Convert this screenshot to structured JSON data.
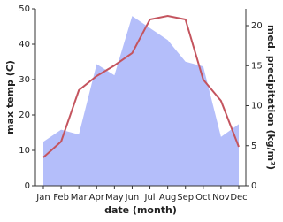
{
  "chart_data": {
    "type": "line",
    "categories": [
      "Jan",
      "Feb",
      "Mar",
      "Apr",
      "May",
      "Jun",
      "Jul",
      "Aug",
      "Sep",
      "Oct",
      "Nov",
      "Dec"
    ],
    "xlabel": "date (month)",
    "ylabel": "max temp (C)",
    "y2label": "med. precipitation (kg/m²)",
    "ylim": [
      0,
      50
    ],
    "yticks": [
      0,
      10,
      20,
      30,
      40,
      50
    ],
    "y2lim": [
      0,
      22.1
    ],
    "y2ticks": [
      0,
      5,
      10,
      15,
      20
    ],
    "series": [
      {
        "kind": "area",
        "axis": "y2",
        "color": "#b4befa",
        "values": [
          5.5,
          7,
          6.4,
          15.2,
          13.8,
          21.2,
          19.7,
          18.2,
          15.5,
          14.9,
          6.1,
          7.7
        ]
      },
      {
        "kind": "line",
        "axis": "y",
        "color": "#c4545e",
        "values": [
          8,
          12.5,
          27,
          31,
          34,
          37.5,
          47,
          48,
          47,
          30,
          24,
          11
        ]
      }
    ]
  }
}
